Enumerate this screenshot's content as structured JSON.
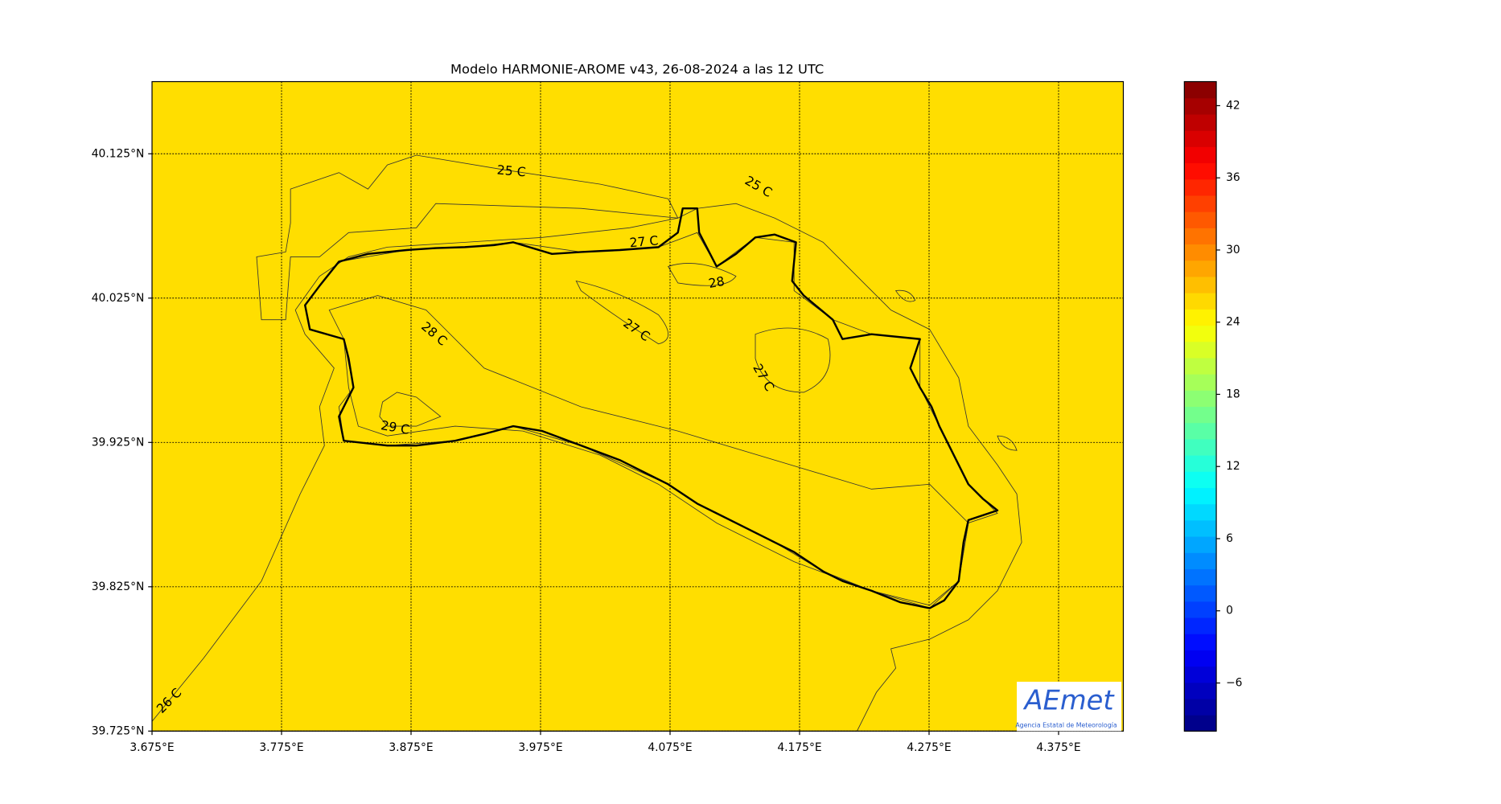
{
  "title": "Modelo HARMONIE-AROME v43, 26-08-2024 a las 12 UTC",
  "map": {
    "xlim": [
      3.675,
      4.425
    ],
    "ylim": [
      39.725,
      40.175
    ],
    "xticks": [
      {
        "value": 3.675,
        "label": "3.675°E"
      },
      {
        "value": 3.775,
        "label": "3.775°E"
      },
      {
        "value": 3.875,
        "label": "3.875°E"
      },
      {
        "value": 3.975,
        "label": "3.975°E"
      },
      {
        "value": 4.075,
        "label": "4.075°E"
      },
      {
        "value": 4.175,
        "label": "4.175°E"
      },
      {
        "value": 4.275,
        "label": "4.275°E"
      },
      {
        "value": 4.375,
        "label": "4.375°E"
      }
    ],
    "yticks": [
      {
        "value": 39.725,
        "label": "39.725°N"
      },
      {
        "value": 39.825,
        "label": "39.825°N"
      },
      {
        "value": 39.925,
        "label": "39.925°N"
      },
      {
        "value": 40.025,
        "label": "40.025°N"
      },
      {
        "value": 40.125,
        "label": "40.125°N"
      }
    ],
    "grid": true,
    "contour_labels": [
      {
        "value": 25,
        "label": "25 C"
      },
      {
        "value": 25,
        "label": "25 C"
      },
      {
        "value": 27,
        "label": "27 C"
      },
      28,
      {
        "value": 27,
        "label": "27 C"
      },
      {
        "value": 28,
        "label": "28 C"
      },
      {
        "value": 27,
        "label": "27 C"
      },
      {
        "value": 29,
        "label": "29 C"
      },
      {
        "value": 26,
        "label": "26 C"
      }
    ]
  },
  "colorbar": {
    "lim": [
      -10,
      44
    ],
    "ticks": [
      {
        "value": -6,
        "label": "−6"
      },
      0,
      6,
      12,
      18,
      24,
      30,
      36,
      42
    ]
  },
  "logo": {
    "name": "AEmet",
    "subtitle": "Agencia Estatal de Meteorología"
  }
}
